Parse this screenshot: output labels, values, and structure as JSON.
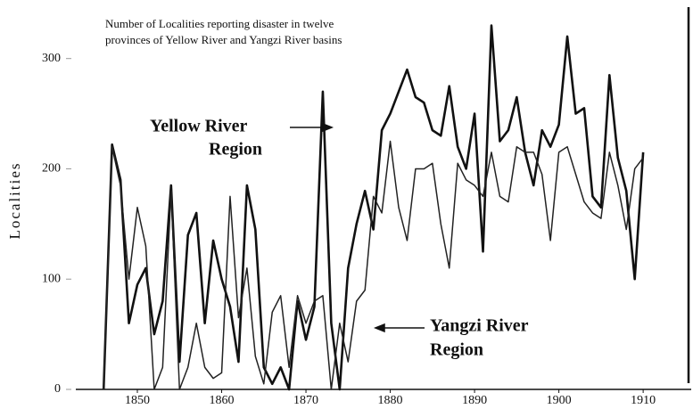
{
  "chart_data": {
    "type": "line",
    "title_lines": [
      "Number of Localities reporting disaster in twelve",
      "provinces of Yellow River and Yangzi River basins"
    ],
    "ylabel": "Localities",
    "x": [
      1846,
      1847,
      1848,
      1849,
      1850,
      1851,
      1852,
      1853,
      1854,
      1855,
      1856,
      1857,
      1858,
      1859,
      1860,
      1861,
      1862,
      1863,
      1864,
      1865,
      1866,
      1867,
      1868,
      1869,
      1870,
      1871,
      1872,
      1873,
      1874,
      1875,
      1876,
      1877,
      1878,
      1879,
      1880,
      1881,
      1882,
      1883,
      1884,
      1885,
      1886,
      1887,
      1888,
      1889,
      1890,
      1891,
      1892,
      1893,
      1894,
      1895,
      1896,
      1897,
      1898,
      1899,
      1900,
      1901,
      1902,
      1903,
      1904,
      1905,
      1906,
      1907,
      1908,
      1909,
      1910
    ],
    "series": [
      {
        "color": "#111111",
        "line_width": 2.6,
        "values": [
          0,
          222,
          190,
          60,
          95,
          110,
          50,
          80,
          185,
          25,
          140,
          160,
          60,
          135,
          100,
          75,
          25,
          185,
          145,
          20,
          5,
          20,
          0,
          80,
          45,
          75,
          270,
          60,
          0,
          110,
          150,
          180,
          145,
          235,
          250,
          270,
          290,
          265,
          260,
          235,
          230,
          275,
          220,
          200,
          250,
          125,
          330,
          225,
          235,
          265,
          215,
          185,
          235,
          220,
          240,
          320,
          250,
          255,
          175,
          165,
          285,
          210,
          180,
          100,
          215
        ]
      },
      {
        "color": "#222222",
        "line_width": 1.5,
        "values": [
          0,
          220,
          185,
          100,
          165,
          130,
          0,
          20,
          180,
          0,
          20,
          60,
          20,
          10,
          15,
          175,
          65,
          110,
          30,
          5,
          70,
          85,
          20,
          85,
          60,
          80,
          85,
          0,
          60,
          25,
          80,
          90,
          175,
          160,
          225,
          165,
          135,
          200,
          200,
          205,
          150,
          110,
          205,
          190,
          185,
          175,
          215,
          175,
          170,
          220,
          215,
          215,
          195,
          135,
          215,
          220,
          195,
          170,
          160,
          155,
          215,
          185,
          145,
          200,
          210
        ]
      }
    ],
    "annotations": [
      {
        "lines": [
          "Yellow River",
          "Region"
        ]
      },
      {
        "lines": [
          "Yangzi River",
          "Region"
        ]
      }
    ],
    "xlim": [
      1842.7,
      1915.7
    ],
    "xticks": [
      1850,
      1860,
      1870,
      1880,
      1890,
      1900,
      1910
    ],
    "ylim": [
      0,
      345
    ],
    "yticks": [
      0,
      100,
      200,
      300
    ],
    "grid": false
  }
}
